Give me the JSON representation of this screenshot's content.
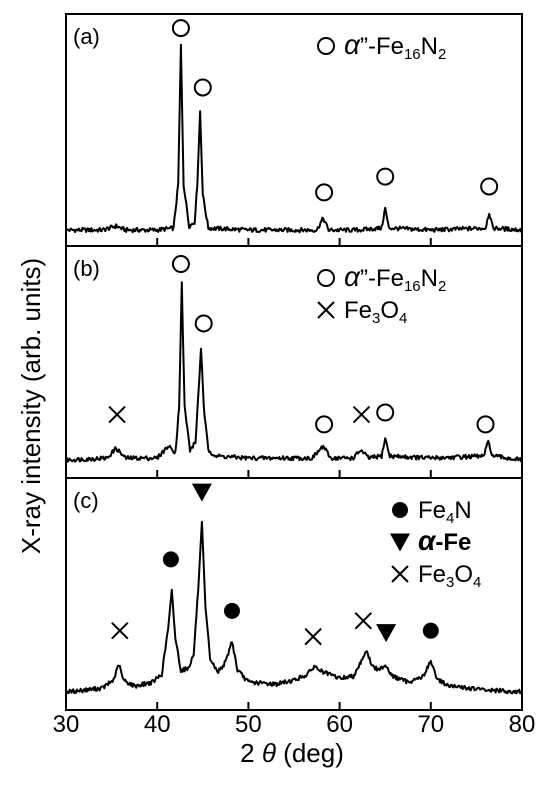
{
  "chart_data": {
    "type": "line",
    "xlabel_prefix": "2",
    "xlabel_symbol": "θ",
    "xlabel_unit": " (deg)",
    "ylabel": "X-ray intensity (arb. units)",
    "xlim": [
      30,
      80
    ],
    "xticks": [
      30,
      40,
      50,
      60,
      70,
      80
    ],
    "panels": [
      {
        "label": "(a)",
        "legend": [
          {
            "marker": "open-circle",
            "sym": "α",
            "rest": "”-Fe",
            "sub": "16",
            "tail": "N",
            "sub2": "2"
          }
        ],
        "series_values": [
          [
            30,
            0.02
          ],
          [
            34,
            0.02
          ],
          [
            35.5,
            0.04
          ],
          [
            36.5,
            0.02
          ],
          [
            40,
            0.02
          ],
          [
            41.8,
            0.03
          ],
          [
            42.3,
            0.25
          ],
          [
            42.6,
            0.95
          ],
          [
            42.9,
            0.25
          ],
          [
            43.5,
            0.04
          ],
          [
            44.1,
            0.06
          ],
          [
            44.4,
            0.25
          ],
          [
            44.7,
            0.62
          ],
          [
            45.0,
            0.2
          ],
          [
            45.6,
            0.03
          ],
          [
            50,
            0.02
          ],
          [
            57.5,
            0.02
          ],
          [
            58.2,
            0.08
          ],
          [
            58.8,
            0.02
          ],
          [
            62,
            0.02
          ],
          [
            64.6,
            0.03
          ],
          [
            65.0,
            0.13
          ],
          [
            65.4,
            0.03
          ],
          [
            70,
            0.02
          ],
          [
            76.0,
            0.03
          ],
          [
            76.4,
            0.11
          ],
          [
            76.8,
            0.03
          ],
          [
            80,
            0.02
          ]
        ],
        "markers": [
          {
            "type": "open-circle",
            "x": 42.6,
            "y": 1.04
          },
          {
            "type": "open-circle",
            "x": 45.0,
            "y": 0.74
          },
          {
            "type": "open-circle",
            "x": 58.3,
            "y": 0.21
          },
          {
            "type": "open-circle",
            "x": 65.0,
            "y": 0.29
          },
          {
            "type": "open-circle",
            "x": 76.4,
            "y": 0.24
          }
        ]
      },
      {
        "label": "(b)",
        "legend": [
          {
            "marker": "open-circle",
            "sym": "α",
            "rest": "”-Fe",
            "sub": "16",
            "tail": "N",
            "sub2": "2"
          },
          {
            "marker": "cross",
            "sym": "",
            "rest": "Fe",
            "sub": "3",
            "tail": "O",
            "sub2": "4"
          }
        ],
        "series_values": [
          [
            30,
            0.03
          ],
          [
            34.5,
            0.04
          ],
          [
            35.5,
            0.09
          ],
          [
            36.5,
            0.04
          ],
          [
            40,
            0.04
          ],
          [
            41.2,
            0.1
          ],
          [
            42.0,
            0.07
          ],
          [
            42.4,
            0.3
          ],
          [
            42.7,
            0.92
          ],
          [
            43.0,
            0.3
          ],
          [
            43.6,
            0.08
          ],
          [
            44.2,
            0.12
          ],
          [
            44.5,
            0.35
          ],
          [
            44.8,
            0.6
          ],
          [
            45.1,
            0.3
          ],
          [
            45.6,
            0.08
          ],
          [
            46.5,
            0.05
          ],
          [
            50,
            0.04
          ],
          [
            57.0,
            0.04
          ],
          [
            58.2,
            0.1
          ],
          [
            59.0,
            0.04
          ],
          [
            61.5,
            0.04
          ],
          [
            62.3,
            0.08
          ],
          [
            63.2,
            0.04
          ],
          [
            64.6,
            0.05
          ],
          [
            65.0,
            0.14
          ],
          [
            65.5,
            0.05
          ],
          [
            70,
            0.04
          ],
          [
            75.8,
            0.05
          ],
          [
            76.3,
            0.12
          ],
          [
            76.8,
            0.05
          ],
          [
            80,
            0.03
          ]
        ],
        "markers": [
          {
            "type": "open-circle",
            "x": 42.6,
            "y": 1.02
          },
          {
            "type": "open-circle",
            "x": 45.1,
            "y": 0.72
          },
          {
            "type": "cross",
            "x": 35.6,
            "y": 0.26
          },
          {
            "type": "open-circle",
            "x": 58.3,
            "y": 0.21
          },
          {
            "type": "cross",
            "x": 62.4,
            "y": 0.26
          },
          {
            "type": "open-circle",
            "x": 65.0,
            "y": 0.27
          },
          {
            "type": "open-circle",
            "x": 76.0,
            "y": 0.21
          }
        ]
      },
      {
        "label": "(c)",
        "legend": [
          {
            "marker": "filled-circle",
            "sym": "",
            "rest": "Fe",
            "sub": "4",
            "tail": "N",
            "sub2": ""
          },
          {
            "marker": "filled-triangle",
            "sym": "α",
            "rest": "-Fe",
            "sub": "",
            "tail": "",
            "sub2": "",
            "bold": true
          },
          {
            "marker": "cross",
            "sym": "",
            "rest": "Fe",
            "sub": "3",
            "tail": "O",
            "sub2": "4"
          }
        ],
        "series_values": [
          [
            30,
            0.03
          ],
          [
            34.0,
            0.05
          ],
          [
            35.2,
            0.09
          ],
          [
            35.8,
            0.17
          ],
          [
            36.3,
            0.09
          ],
          [
            37.5,
            0.06
          ],
          [
            39.5,
            0.08
          ],
          [
            40.5,
            0.12
          ],
          [
            41.2,
            0.35
          ],
          [
            41.6,
            0.54
          ],
          [
            42.0,
            0.3
          ],
          [
            42.6,
            0.14
          ],
          [
            43.4,
            0.15
          ],
          [
            44.0,
            0.22
          ],
          [
            44.5,
            0.55
          ],
          [
            44.9,
            0.88
          ],
          [
            45.3,
            0.45
          ],
          [
            45.8,
            0.2
          ],
          [
            46.6,
            0.13
          ],
          [
            47.5,
            0.18
          ],
          [
            48.2,
            0.29
          ],
          [
            48.8,
            0.14
          ],
          [
            50,
            0.08
          ],
          [
            53,
            0.07
          ],
          [
            55,
            0.09
          ],
          [
            56.5,
            0.12
          ],
          [
            57.2,
            0.16
          ],
          [
            58.2,
            0.13
          ],
          [
            60,
            0.1
          ],
          [
            61.5,
            0.11
          ],
          [
            62.3,
            0.18
          ],
          [
            62.9,
            0.24
          ],
          [
            63.6,
            0.16
          ],
          [
            64.3,
            0.14
          ],
          [
            65.0,
            0.17
          ],
          [
            65.8,
            0.11
          ],
          [
            67.5,
            0.08
          ],
          [
            69.2,
            0.11
          ],
          [
            70.0,
            0.19
          ],
          [
            70.6,
            0.1
          ],
          [
            72,
            0.06
          ],
          [
            76,
            0.04
          ],
          [
            80,
            0.03
          ]
        ],
        "markers": [
          {
            "type": "cross",
            "x": 35.9,
            "y": 0.34
          },
          {
            "type": "filled-circle",
            "x": 41.5,
            "y": 0.7
          },
          {
            "type": "filled-triangle",
            "x": 44.9,
            "y": 1.04
          },
          {
            "type": "filled-circle",
            "x": 48.2,
            "y": 0.44
          },
          {
            "type": "cross",
            "x": 57.1,
            "y": 0.31
          },
          {
            "type": "cross",
            "x": 62.6,
            "y": 0.39
          },
          {
            "type": "filled-triangle",
            "x": 65.1,
            "y": 0.33
          },
          {
            "type": "filled-circle",
            "x": 70.0,
            "y": 0.34
          }
        ]
      }
    ]
  }
}
